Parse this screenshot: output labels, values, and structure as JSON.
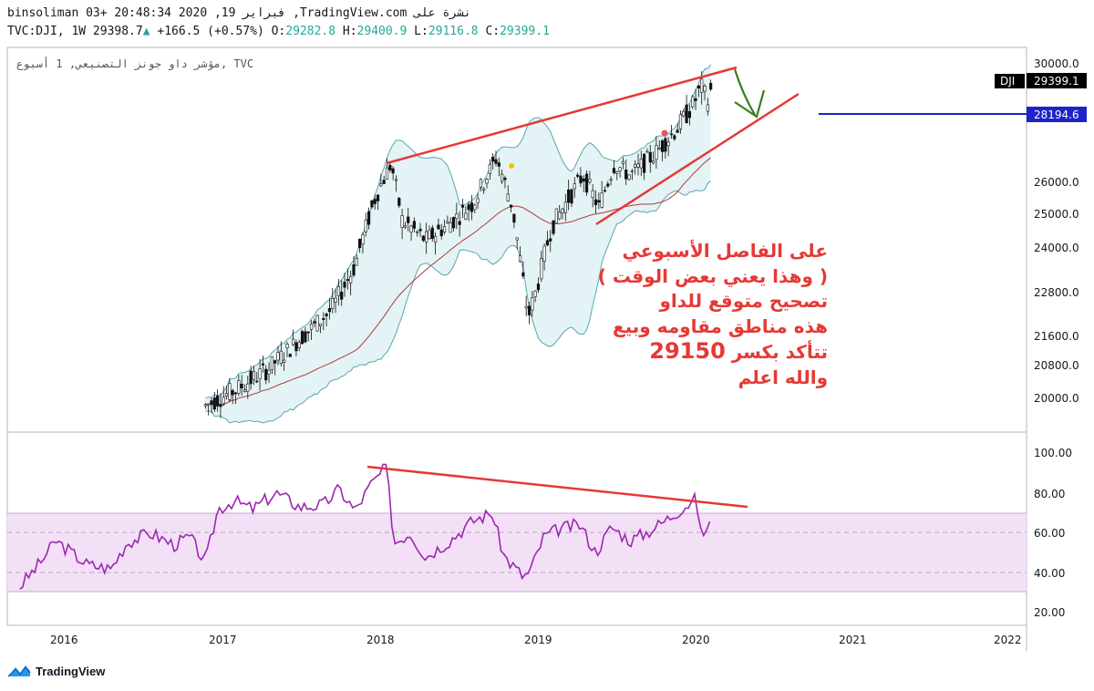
{
  "header": {
    "line1": "binsoliman 03+ 20:48:34 2020 ,19 فبراير ,TradingView.com نشرة على",
    "symbol": "TVC:DJI, 1W",
    "last": "29398.7",
    "change": "+166.5 (+0.57%)",
    "o_label": "O:",
    "o": "29282.8",
    "h_label": "H:",
    "h": "29400.9",
    "l_label": "L:",
    "l": "29116.8",
    "c_label": "C:",
    "c": "29399.1"
  },
  "chart_title": "مؤشر داو جونز التصنيعي, 1 أسبوع, TVC",
  "price_tags": {
    "symbol": "DJI",
    "current": "29399.1",
    "level": "28194.6"
  },
  "annotation": {
    "line1": "على الفاصل الأسبوعي",
    "line2": "( وهذا يعني بعض الوقت )",
    "line3": "تصحيح متوقع للداو",
    "line4": "هذه مناطق مقاومه وبيع",
    "line5_text": "تتأكد بكسر",
    "line5_number": "29150",
    "line6": "والله اعلم"
  },
  "footer": {
    "brand": "TradingView"
  },
  "colors": {
    "trendline": "#e53935",
    "level_line": "#1e22c9",
    "arrow": "#3a7d1e",
    "rsi": "#9c27b0",
    "rsi_band": "#f3e0f7",
    "bollinger_fill": "#e4f3f5",
    "bollinger_line": "#5aa6b2",
    "ma_line": "#b03a3a",
    "candle": "#111111"
  },
  "chart_data": [
    {
      "type": "candlestick",
      "interval": "1W",
      "y_ticks": [
        "30000.0",
        "26000.0",
        "25000.0",
        "24000.0",
        "22800.0",
        "21600.0",
        "20800.0",
        "20000.0"
      ],
      "x_ticks": [
        "2016",
        "2017",
        "2018",
        "2019",
        "2020",
        "2021",
        "2022"
      ],
      "series": [
        {
          "name": "DJI",
          "points": [
            [
              2016.9,
              19800
            ],
            [
              2017.1,
              20200
            ],
            [
              2017.3,
              20700
            ],
            [
              2017.5,
              21500
            ],
            [
              2017.7,
              22300
            ],
            [
              2017.85,
              23500
            ],
            [
              2017.98,
              25500
            ],
            [
              2018.08,
              26600
            ],
            [
              2018.15,
              24800
            ],
            [
              2018.3,
              24200
            ],
            [
              2018.45,
              24700
            ],
            [
              2018.6,
              25300
            ],
            [
              2018.75,
              26800
            ],
            [
              2018.85,
              25200
            ],
            [
              2018.95,
              22100
            ],
            [
              2019.0,
              22800
            ],
            [
              2019.1,
              24600
            ],
            [
              2019.3,
              26200
            ],
            [
              2019.4,
              25200
            ],
            [
              2019.5,
              26600
            ],
            [
              2019.6,
              26200
            ],
            [
              2019.75,
              26900
            ],
            [
              2019.9,
              27800
            ],
            [
              2020.0,
              28600
            ],
            [
              2020.05,
              29200
            ],
            [
              2020.1,
              28600
            ],
            [
              2020.12,
              29400
            ]
          ]
        }
      ],
      "annotations": [
        "DJI 29399.1",
        "28194.6"
      ]
    },
    {
      "type": "line",
      "name": "RSI",
      "y_ticks": [
        "100.00",
        "80.00",
        "60.00",
        "40.00",
        "20.00"
      ],
      "band": [
        30,
        70
      ],
      "dashed_levels": [
        40,
        60
      ],
      "series": [
        {
          "name": "RSI",
          "points": [
            [
              2015.72,
              33
            ],
            [
              2015.85,
              45
            ],
            [
              2015.95,
              56
            ],
            [
              2016.05,
              50
            ],
            [
              2016.15,
              44
            ],
            [
              2016.3,
              42
            ],
            [
              2016.4,
              55
            ],
            [
              2016.55,
              60
            ],
            [
              2016.7,
              54
            ],
            [
              2016.8,
              58
            ],
            [
              2016.9,
              45
            ],
            [
              2016.98,
              72
            ],
            [
              2017.08,
              76
            ],
            [
              2017.2,
              72
            ],
            [
              2017.35,
              80
            ],
            [
              2017.5,
              73
            ],
            [
              2017.65,
              74
            ],
            [
              2017.75,
              82
            ],
            [
              2017.85,
              71
            ],
            [
              2017.95,
              84
            ],
            [
              2018.05,
              93
            ],
            [
              2018.1,
              55
            ],
            [
              2018.2,
              60
            ],
            [
              2018.3,
              48
            ],
            [
              2018.45,
              56
            ],
            [
              2018.6,
              66
            ],
            [
              2018.72,
              70
            ],
            [
              2018.8,
              48
            ],
            [
              2018.92,
              38
            ],
            [
              2018.96,
              40
            ],
            [
              2019.05,
              58
            ],
            [
              2019.15,
              62
            ],
            [
              2019.28,
              64
            ],
            [
              2019.38,
              50
            ],
            [
              2019.48,
              63
            ],
            [
              2019.6,
              56
            ],
            [
              2019.7,
              60
            ],
            [
              2019.82,
              66
            ],
            [
              2019.92,
              72
            ],
            [
              2020.02,
              77
            ],
            [
              2020.05,
              58
            ],
            [
              2020.12,
              67
            ]
          ]
        }
      ]
    }
  ]
}
